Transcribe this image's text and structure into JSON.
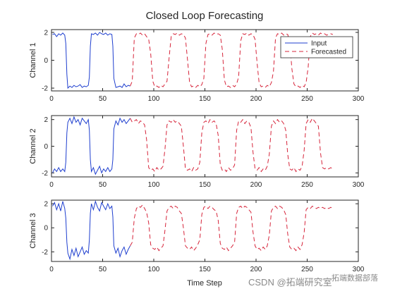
{
  "chart_data": {
    "type": "line",
    "title": "Closed Loop Forecasting",
    "xlabel": "Time Step",
    "legend": {
      "placement": "top-right",
      "entries": [
        "Input",
        "Forecasted"
      ]
    },
    "colors": {
      "input": "#1f3fcf",
      "forecasted": "#d6243a"
    },
    "subplots": [
      {
        "ylabel": "Channel 1",
        "xlim": [
          0,
          300
        ],
        "ylim": [
          -2.2,
          2.2
        ],
        "xticks": [
          "0",
          "50",
          "100",
          "150",
          "200",
          "250",
          "300"
        ],
        "yticks": [
          "2",
          "0",
          "-2"
        ],
        "series": [
          {
            "name": "Input",
            "x": [
              1,
              3,
              5,
              7,
              9,
              11,
              13,
              14,
              15,
              16,
              18,
              20,
              22,
              24,
              26,
              28,
              30,
              32,
              34,
              36,
              37,
              38,
              39,
              41,
              43,
              45,
              47,
              49,
              51,
              53,
              55,
              57,
              59,
              60,
              61,
              63,
              65,
              67,
              69,
              71,
              73,
              75,
              77
            ],
            "y": [
              1.85,
              1.9,
              1.7,
              1.9,
              1.8,
              1.95,
              1.8,
              1.2,
              -1.0,
              -2.0,
              -1.85,
              -1.95,
              -1.8,
              -1.9,
              -1.85,
              -1.75,
              -1.95,
              -1.85,
              -1.9,
              -1.8,
              -1.2,
              1.0,
              1.9,
              1.85,
              1.95,
              1.8,
              2.0,
              1.9,
              1.85,
              1.95,
              1.8,
              1.9,
              1.85,
              1.0,
              -1.3,
              -1.95,
              -1.9,
              -1.85,
              -1.95,
              -1.7,
              -1.9,
              -1.8,
              -1.85
            ]
          },
          {
            "name": "Forecasted",
            "x": [
              77,
              79,
              81,
              83,
              85,
              87,
              89,
              91,
              93,
              95,
              97,
              99,
              101,
              103,
              105,
              107,
              109,
              111,
              113,
              115,
              117,
              119,
              121,
              123,
              125,
              127,
              129,
              131,
              133,
              135,
              137,
              139,
              141,
              143,
              145,
              147,
              149,
              151,
              153,
              155,
              157,
              159,
              161,
              163,
              165,
              167,
              169,
              171,
              173,
              175,
              177,
              179,
              181,
              183,
              185,
              187,
              189,
              191,
              193,
              195,
              197,
              199,
              201,
              203,
              205,
              207,
              209,
              211,
              213,
              215,
              217,
              219,
              221,
              223,
              225,
              227,
              229,
              231,
              233,
              235,
              237,
              239,
              241,
              243,
              245,
              247,
              249,
              251,
              253,
              255,
              257,
              259,
              261,
              263,
              265,
              267,
              269,
              271,
              273,
              275
            ],
            "y": [
              -1.85,
              -1.5,
              1.6,
              1.9,
              1.85,
              1.95,
              1.8,
              1.9,
              1.7,
              1.5,
              0.5,
              -1.5,
              -1.9,
              -1.85,
              -1.95,
              -1.8,
              -1.9,
              -1.7,
              -1.5,
              0.2,
              1.7,
              1.9,
              1.85,
              1.95,
              1.8,
              1.9,
              1.85,
              1.6,
              0.0,
              -1.6,
              -1.9,
              -1.85,
              -1.95,
              -1.8,
              -1.9,
              -1.75,
              -1.3,
              1.2,
              1.85,
              1.9,
              1.8,
              1.95,
              1.85,
              1.9,
              1.8,
              0.8,
              -1.4,
              -1.9,
              -1.85,
              -1.95,
              -1.8,
              -1.9,
              -1.7,
              -1.2,
              1.4,
              1.9,
              1.85,
              1.95,
              1.8,
              1.9,
              1.85,
              1.5,
              -0.2,
              -1.6,
              -1.9,
              -1.85,
              -1.95,
              -1.8,
              -1.9,
              -1.6,
              -0.8,
              1.6,
              1.9,
              1.85,
              1.95,
              1.8,
              1.9,
              1.85,
              1.3,
              -0.6,
              -1.7,
              -1.9,
              -1.85,
              -1.95,
              -1.8,
              -1.9,
              -1.6,
              -0.5,
              1.7,
              1.95,
              1.85,
              1.9,
              1.8,
              1.95,
              1.85,
              1.9,
              1.8,
              1.85,
              1.9,
              1.85
            ]
          }
        ]
      },
      {
        "ylabel": "Channel 2",
        "xlim": [
          0,
          300
        ],
        "ylim": [
          -2.3,
          2.3
        ],
        "xticks": [
          "0",
          "50",
          "100",
          "150",
          "200",
          "250",
          "300"
        ],
        "yticks": [
          "2",
          "0",
          "-2"
        ],
        "series": [
          {
            "name": "Input",
            "x": [
              1,
              3,
              5,
              7,
              9,
              11,
              13,
              14,
              15,
              16,
              18,
              20,
              22,
              24,
              26,
              28,
              30,
              32,
              34,
              36,
              37,
              38,
              39,
              41,
              43,
              45,
              47,
              49,
              51,
              53,
              55,
              57,
              59,
              60,
              61,
              63,
              65,
              67,
              69,
              71,
              73,
              75,
              77
            ],
            "y": [
              -2.0,
              -1.7,
              -1.9,
              -1.6,
              -1.9,
              -1.7,
              -1.9,
              -1.2,
              1.0,
              1.8,
              2.1,
              1.7,
              2.2,
              1.8,
              2.0,
              1.6,
              2.1,
              1.9,
              1.7,
              2.0,
              1.2,
              -1.0,
              -1.9,
              -1.6,
              -2.1,
              -1.8,
              -1.5,
              -2.0,
              -1.7,
              -1.9,
              -1.6,
              -1.9,
              -1.7,
              -1.0,
              1.3,
              1.9,
              1.6,
              2.1,
              1.8,
              2.0,
              1.7,
              1.9,
              2.1
            ]
          },
          {
            "name": "Forecasted",
            "x": [
              77,
              79,
              81,
              83,
              85,
              87,
              89,
              91,
              93,
              95,
              97,
              99,
              101,
              103,
              105,
              107,
              109,
              111,
              113,
              115,
              117,
              119,
              121,
              123,
              125,
              127,
              129,
              131,
              133,
              135,
              137,
              139,
              141,
              143,
              145,
              147,
              149,
              151,
              153,
              155,
              157,
              159,
              161,
              163,
              165,
              167,
              169,
              171,
              173,
              175,
              177,
              179,
              181,
              183,
              185,
              187,
              189,
              191,
              193,
              195,
              197,
              199,
              201,
              203,
              205,
              207,
              209,
              211,
              213,
              215,
              217,
              219,
              221,
              223,
              225,
              227,
              229,
              231,
              233,
              235,
              237,
              239,
              241,
              243,
              245,
              247,
              249,
              251,
              253,
              255,
              257,
              259,
              261,
              263,
              265,
              267,
              269,
              271,
              273,
              275
            ],
            "y": [
              2.1,
              1.8,
              1.9,
              2.0,
              1.7,
              1.9,
              1.8,
              1.6,
              0.5,
              -1.6,
              -1.8,
              -1.7,
              -1.9,
              -1.6,
              -1.8,
              -1.7,
              -1.5,
              -0.2,
              1.6,
              1.9,
              1.8,
              2.0,
              1.8,
              1.9,
              1.7,
              1.5,
              0.0,
              -1.7,
              -1.8,
              -1.7,
              -1.9,
              -1.6,
              -1.8,
              -1.7,
              -1.2,
              1.0,
              1.8,
              1.9,
              1.7,
              2.0,
              1.8,
              1.9,
              1.7,
              0.8,
              -1.4,
              -1.8,
              -1.7,
              -1.9,
              -1.6,
              -1.8,
              -1.7,
              -1.4,
              1.2,
              1.9,
              1.8,
              2.0,
              1.7,
              1.9,
              1.8,
              1.4,
              -0.4,
              -1.7,
              -1.8,
              -1.6,
              -1.9,
              -1.7,
              -1.8,
              -1.5,
              -0.6,
              1.5,
              1.9,
              1.7,
              2.0,
              1.8,
              1.9,
              1.7,
              1.2,
              -0.6,
              -1.7,
              -1.8,
              -1.6,
              -1.9,
              -1.7,
              -1.8,
              -1.5,
              -0.3,
              1.7,
              2.0,
              1.8,
              2.1,
              1.9,
              1.7,
              1.5,
              -0.5,
              -1.6,
              -1.7,
              -1.6,
              -1.7,
              -1.6,
              -1.7
            ]
          }
        ]
      },
      {
        "ylabel": "Channel 3",
        "xlim": [
          0,
          300
        ],
        "ylim": [
          -2.8,
          2.3
        ],
        "xticks": [
          "0",
          "50",
          "100",
          "150",
          "200",
          "250",
          "300"
        ],
        "yticks": [
          "2",
          "0",
          "-2"
        ],
        "series": [
          {
            "name": "Input",
            "x": [
              1,
              3,
              5,
              7,
              9,
              11,
              13,
              14,
              15,
              16,
              18,
              20,
              22,
              24,
              26,
              28,
              30,
              32,
              34,
              36,
              37,
              38,
              39,
              41,
              43,
              45,
              47,
              49,
              51,
              53,
              55,
              57,
              59,
              60,
              61,
              63,
              65,
              67,
              69,
              71,
              73,
              75,
              77
            ],
            "y": [
              1.8,
              2.1,
              1.5,
              2.0,
              1.4,
              2.2,
              1.6,
              0.8,
              -1.2,
              -2.1,
              -2.6,
              -1.8,
              -2.3,
              -1.7,
              -2.4,
              -2.0,
              -1.6,
              -2.2,
              -1.9,
              -2.1,
              -1.0,
              1.2,
              2.0,
              1.5,
              2.2,
              1.7,
              1.4,
              2.1,
              1.8,
              1.5,
              2.0,
              1.6,
              1.8,
              0.9,
              -1.5,
              -2.1,
              -1.7,
              -2.4,
              -1.9,
              -1.6,
              -2.2,
              -1.8,
              -1.5
            ]
          },
          {
            "name": "Forecasted",
            "x": [
              77,
              79,
              81,
              83,
              85,
              87,
              89,
              91,
              93,
              95,
              97,
              99,
              101,
              103,
              105,
              107,
              109,
              111,
              113,
              115,
              117,
              119,
              121,
              123,
              125,
              127,
              129,
              131,
              133,
              135,
              137,
              139,
              141,
              143,
              145,
              147,
              149,
              151,
              153,
              155,
              157,
              159,
              161,
              163,
              165,
              167,
              169,
              171,
              173,
              175,
              177,
              179,
              181,
              183,
              185,
              187,
              189,
              191,
              193,
              195,
              197,
              199,
              201,
              203,
              205,
              207,
              209,
              211,
              213,
              215,
              217,
              219,
              221,
              223,
              225,
              227,
              229,
              231,
              233,
              235,
              237,
              239,
              241,
              243,
              245,
              247,
              249,
              251,
              253,
              255,
              257,
              259,
              261,
              263,
              265,
              267,
              269,
              271,
              273,
              275
            ],
            "y": [
              -1.5,
              -1.2,
              0.8,
              1.6,
              1.8,
              1.7,
              1.9,
              1.6,
              1.3,
              0.4,
              -1.4,
              -1.7,
              -1.8,
              -1.6,
              -1.9,
              -1.7,
              -1.5,
              -0.2,
              1.4,
              1.7,
              1.8,
              1.6,
              1.8,
              1.7,
              1.4,
              1.2,
              0.0,
              -1.5,
              -1.7,
              -1.8,
              -1.6,
              -1.9,
              -1.7,
              -1.4,
              -1.0,
              1.1,
              1.7,
              1.8,
              1.6,
              1.8,
              1.7,
              1.5,
              1.4,
              0.6,
              -1.3,
              -1.7,
              -1.8,
              -1.6,
              -1.9,
              -1.7,
              -1.5,
              -1.2,
              1.2,
              1.7,
              1.8,
              1.6,
              1.8,
              1.7,
              1.5,
              1.3,
              -0.3,
              -1.5,
              -1.8,
              -1.7,
              -1.9,
              -1.6,
              -1.8,
              -1.5,
              -0.6,
              1.4,
              1.7,
              1.8,
              1.6,
              1.8,
              1.7,
              1.5,
              1.1,
              -0.5,
              -1.6,
              -1.8,
              -1.7,
              -1.9,
              -1.6,
              -1.8,
              -1.4,
              -0.4,
              1.5,
              1.7,
              1.6,
              1.8,
              1.7,
              1.6,
              1.7,
              1.6,
              1.7,
              1.6,
              1.7,
              1.6,
              1.7,
              1.6
            ]
          }
        ]
      }
    ]
  },
  "watermark": {
    "text": "CSDN @拓端研究室",
    "text2": "拓端数据部落"
  }
}
